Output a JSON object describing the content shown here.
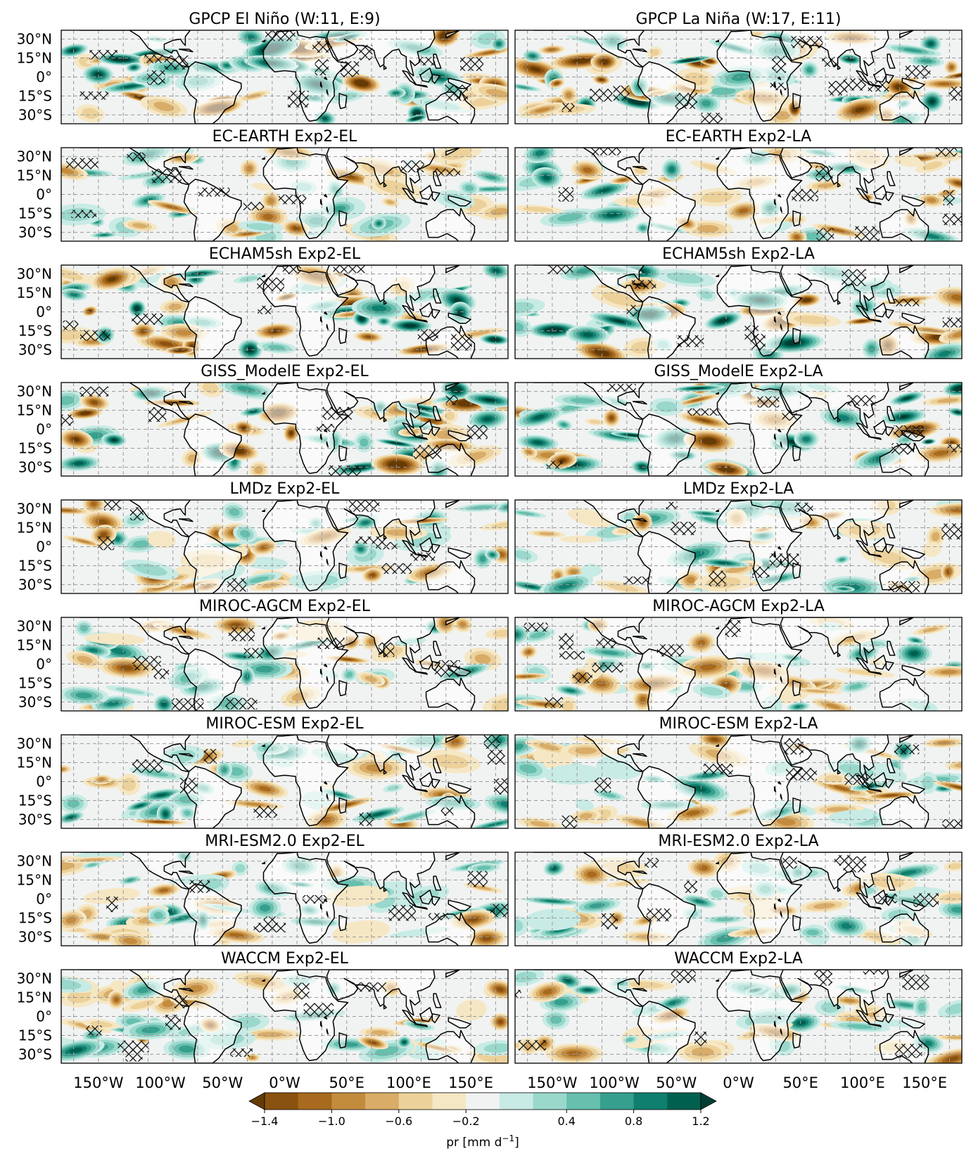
{
  "figure": {
    "panel_titles": [
      [
        "GPCP El Niño (W:11, E:9)",
        "GPCP La Niña (W:17, E:11)"
      ],
      [
        "EC-EARTH Exp2-EL",
        "EC-EARTH Exp2-LA"
      ],
      [
        "ECHAM5sh Exp2-EL",
        "ECHAM5sh Exp2-LA"
      ],
      [
        "GISS_ModelE Exp2-EL",
        "GISS_ModelE Exp2-LA"
      ],
      [
        "LMDz Exp2-EL",
        "LMDz Exp2-LA"
      ],
      [
        "MIROC-AGCM Exp2-EL",
        "MIROC-AGCM Exp2-LA"
      ],
      [
        "MIROC-ESM Exp2-EL",
        "MIROC-ESM Exp2-LA"
      ],
      [
        "MRI-ESM2.0 Exp2-EL",
        "MRI-ESM2.0 Exp2-LA"
      ],
      [
        "WACCM Exp2-EL",
        "WACCM Exp2-LA"
      ]
    ],
    "lat_labels": [
      "30°N",
      "15°N",
      "0°",
      "15°S",
      "30°S"
    ],
    "lon_labels": [
      "150°W",
      "100°W",
      "50°W",
      "0°W",
      "50°E",
      "100°E",
      "150°E"
    ],
    "lon_values": [
      -150,
      -100,
      -50,
      0,
      50,
      100,
      150
    ],
    "lat_values": [
      30,
      15,
      0,
      -15,
      -30
    ],
    "lon_range": [
      -180,
      180
    ],
    "lat_range": [
      -37,
      37
    ],
    "gridlines": true,
    "hatching": "crossed significance hatching"
  },
  "colorbar": {
    "ticks": [
      "−1.4",
      "−1.0",
      "−0.6",
      "−0.2",
      "0.4",
      "0.8",
      "1.2"
    ],
    "label_main": "pr [mm d",
    "label_sup": "−1",
    "label_end": "]",
    "levels": [
      -1.4,
      -1.2,
      -1.0,
      -0.8,
      -0.6,
      -0.4,
      -0.2,
      0.2,
      0.4,
      0.6,
      0.8,
      1.0,
      1.2,
      1.4
    ],
    "colors": [
      "#663b05",
      "#8a5210",
      "#a86a1e",
      "#c38b3c",
      "#d9ac68",
      "#ecd19a",
      "#f6e7c4",
      "#f1f3f2",
      "#c8ebe5",
      "#9ad8cc",
      "#67bfae",
      "#379f8d",
      "#0f7f6f",
      "#00604f",
      "#003e33"
    ],
    "extend": "both",
    "orientation": "horizontal"
  },
  "map_colors": {
    "ocean": "#f1f3f2",
    "coast": "#000000",
    "grid": "#9a9a9a"
  }
}
